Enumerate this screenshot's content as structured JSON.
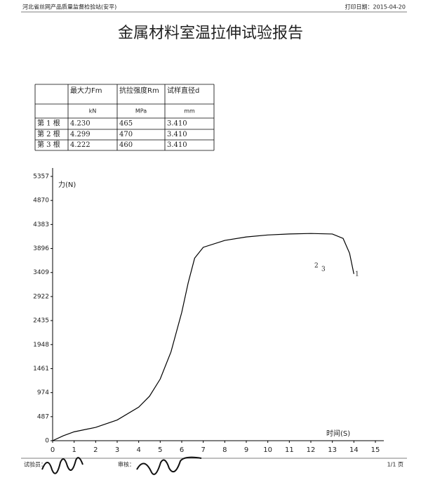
{
  "header": {
    "org": "河北省丝网产品质量监督检验站(安平)",
    "print_date": "打印日期：2015-04-20",
    "title": "金属材料室温拉伸试验报告"
  },
  "table": {
    "columns": [
      "最大力Fm",
      "抗拉强度Rm",
      "试样直径d"
    ],
    "units": [
      "kN",
      "MPa",
      "mm"
    ],
    "rows": [
      [
        "第 1 根",
        "4.230",
        "465",
        "3.410"
      ],
      [
        "第 2 根",
        "4.299",
        "470",
        "3.410"
      ],
      [
        "第 3 根",
        "4.222",
        "460",
        "3.410"
      ]
    ]
  },
  "chart_data": {
    "type": "line",
    "y_label": "力(N)",
    "x_label": "时间(S)",
    "x": [
      0,
      0.5,
      1,
      2,
      3,
      4,
      4.5,
      5,
      5.5,
      6,
      6.3,
      6.6,
      7,
      8,
      9,
      10,
      11,
      12,
      13,
      13.5,
      13.8,
      14
    ],
    "series": [
      {
        "color": "#000000",
        "values": [
          0,
          100,
          180,
          270,
          420,
          680,
          900,
          1250,
          1800,
          2600,
          3200,
          3700,
          3920,
          4060,
          4130,
          4170,
          4190,
          4200,
          4190,
          4100,
          3800,
          3380
        ]
      }
    ],
    "annotations": [
      "1",
      "2",
      "3"
    ],
    "xlim": [
      0,
      15
    ],
    "xticks": [
      0,
      1,
      2,
      3,
      4,
      5,
      6,
      7,
      8,
      9,
      10,
      11,
      12,
      13,
      14,
      15
    ],
    "ylim": [
      0,
      5357
    ],
    "yticks": [
      0,
      487,
      974,
      1461,
      1948,
      2435,
      2922,
      3409,
      3896,
      4383,
      4870,
      5357
    ]
  },
  "footer": {
    "tester": "试验员：",
    "reviewer": "审核：",
    "page": "1/1 页"
  }
}
